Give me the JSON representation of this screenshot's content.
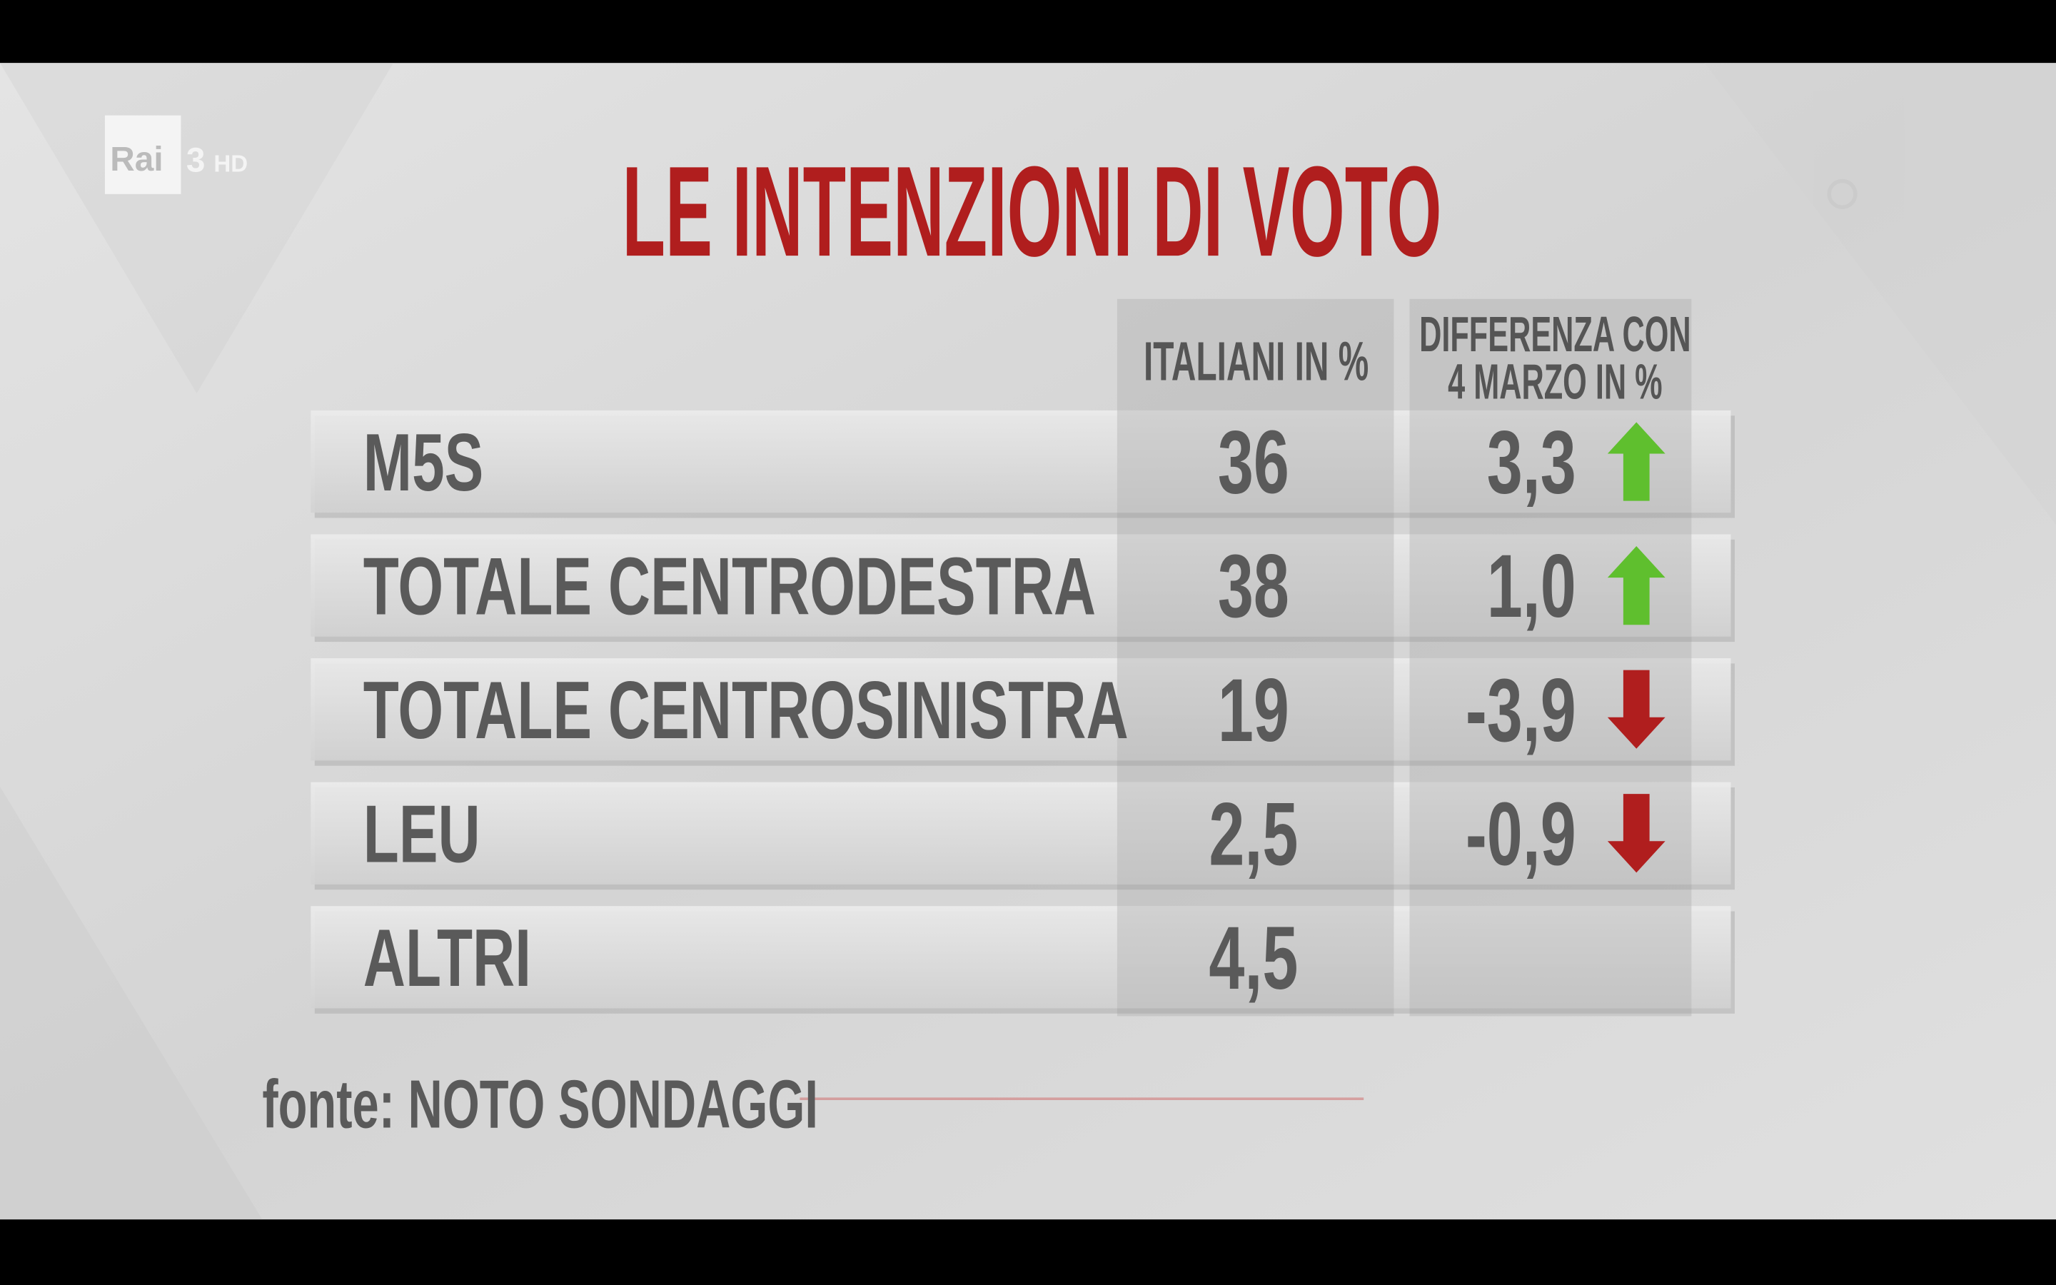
{
  "logo": {
    "brand": "Rai",
    "channel": "3",
    "quality": "HD"
  },
  "title": "LE INTENZIONI DI VOTO",
  "table": {
    "columns": [
      "ITALIANI IN %",
      [
        "DIFFERENZA CON",
        "4 MARZO IN %"
      ]
    ],
    "rows": [
      {
        "party": "M5S",
        "italiani": "36",
        "differenza": "3,3"
      },
      {
        "party": "TOTALE CENTRODESTRA",
        "italiani": "38",
        "differenza": "1,0"
      },
      {
        "party": "TOTALE CENTROSINISTRA",
        "italiani": "19",
        "differenza": "-3,9"
      },
      {
        "party": "LEU",
        "italiani": "2,5",
        "differenza": "-0,9"
      },
      {
        "party": "ALTRI",
        "italiani": "4,5"
      }
    ]
  },
  "source": "fonte: NOTO SONDAGGI"
}
